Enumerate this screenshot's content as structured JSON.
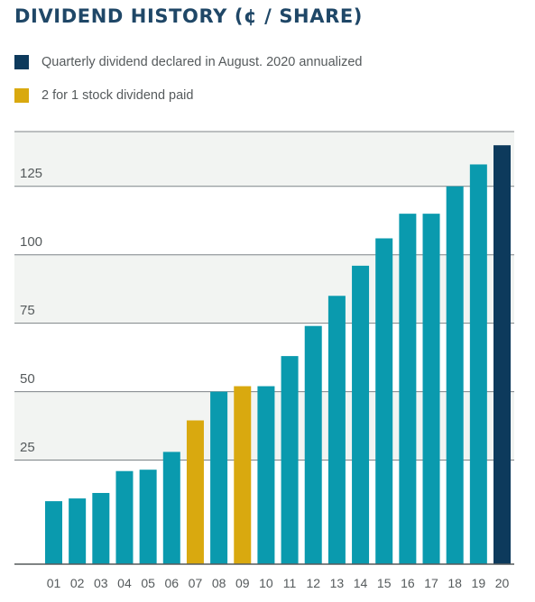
{
  "title": "DIVIDEND HISTORY (¢ / SHARE)",
  "legend": [
    {
      "label": "Quarterly dividend declared in August. 2020 annualized",
      "color": "#0d3a5c"
    },
    {
      "label": "2 for 1 stock dividend paid",
      "color": "#d9a90f"
    }
  ],
  "colors": {
    "default": "#0a9aae",
    "annualized": "#0d3a5c",
    "stock_dividend": "#d9a90f"
  },
  "chart_data": {
    "type": "bar",
    "title": "DIVIDEND HISTORY (¢ / SHARE)",
    "categories": [
      "01",
      "02",
      "03",
      "04",
      "05",
      "06",
      "07",
      "08",
      "09",
      "10",
      "11",
      "12",
      "13",
      "14",
      "15",
      "16",
      "17",
      "18",
      "19",
      "20"
    ],
    "values": [
      10,
      11,
      13,
      21,
      21.5,
      28,
      39.5,
      50,
      52,
      52,
      63,
      74,
      85,
      96,
      106,
      115,
      115,
      125,
      133,
      140
    ],
    "bar_colors": [
      "default",
      "default",
      "default",
      "default",
      "default",
      "default",
      "stock_dividend",
      "default",
      "stock_dividend",
      "default",
      "default",
      "default",
      "default",
      "default",
      "default",
      "default",
      "default",
      "default",
      "default",
      "annualized"
    ],
    "yticks": [
      25,
      50,
      75,
      100,
      125
    ],
    "ylim": [
      -13,
      145
    ],
    "grid": true,
    "legend_position": "top-left"
  }
}
